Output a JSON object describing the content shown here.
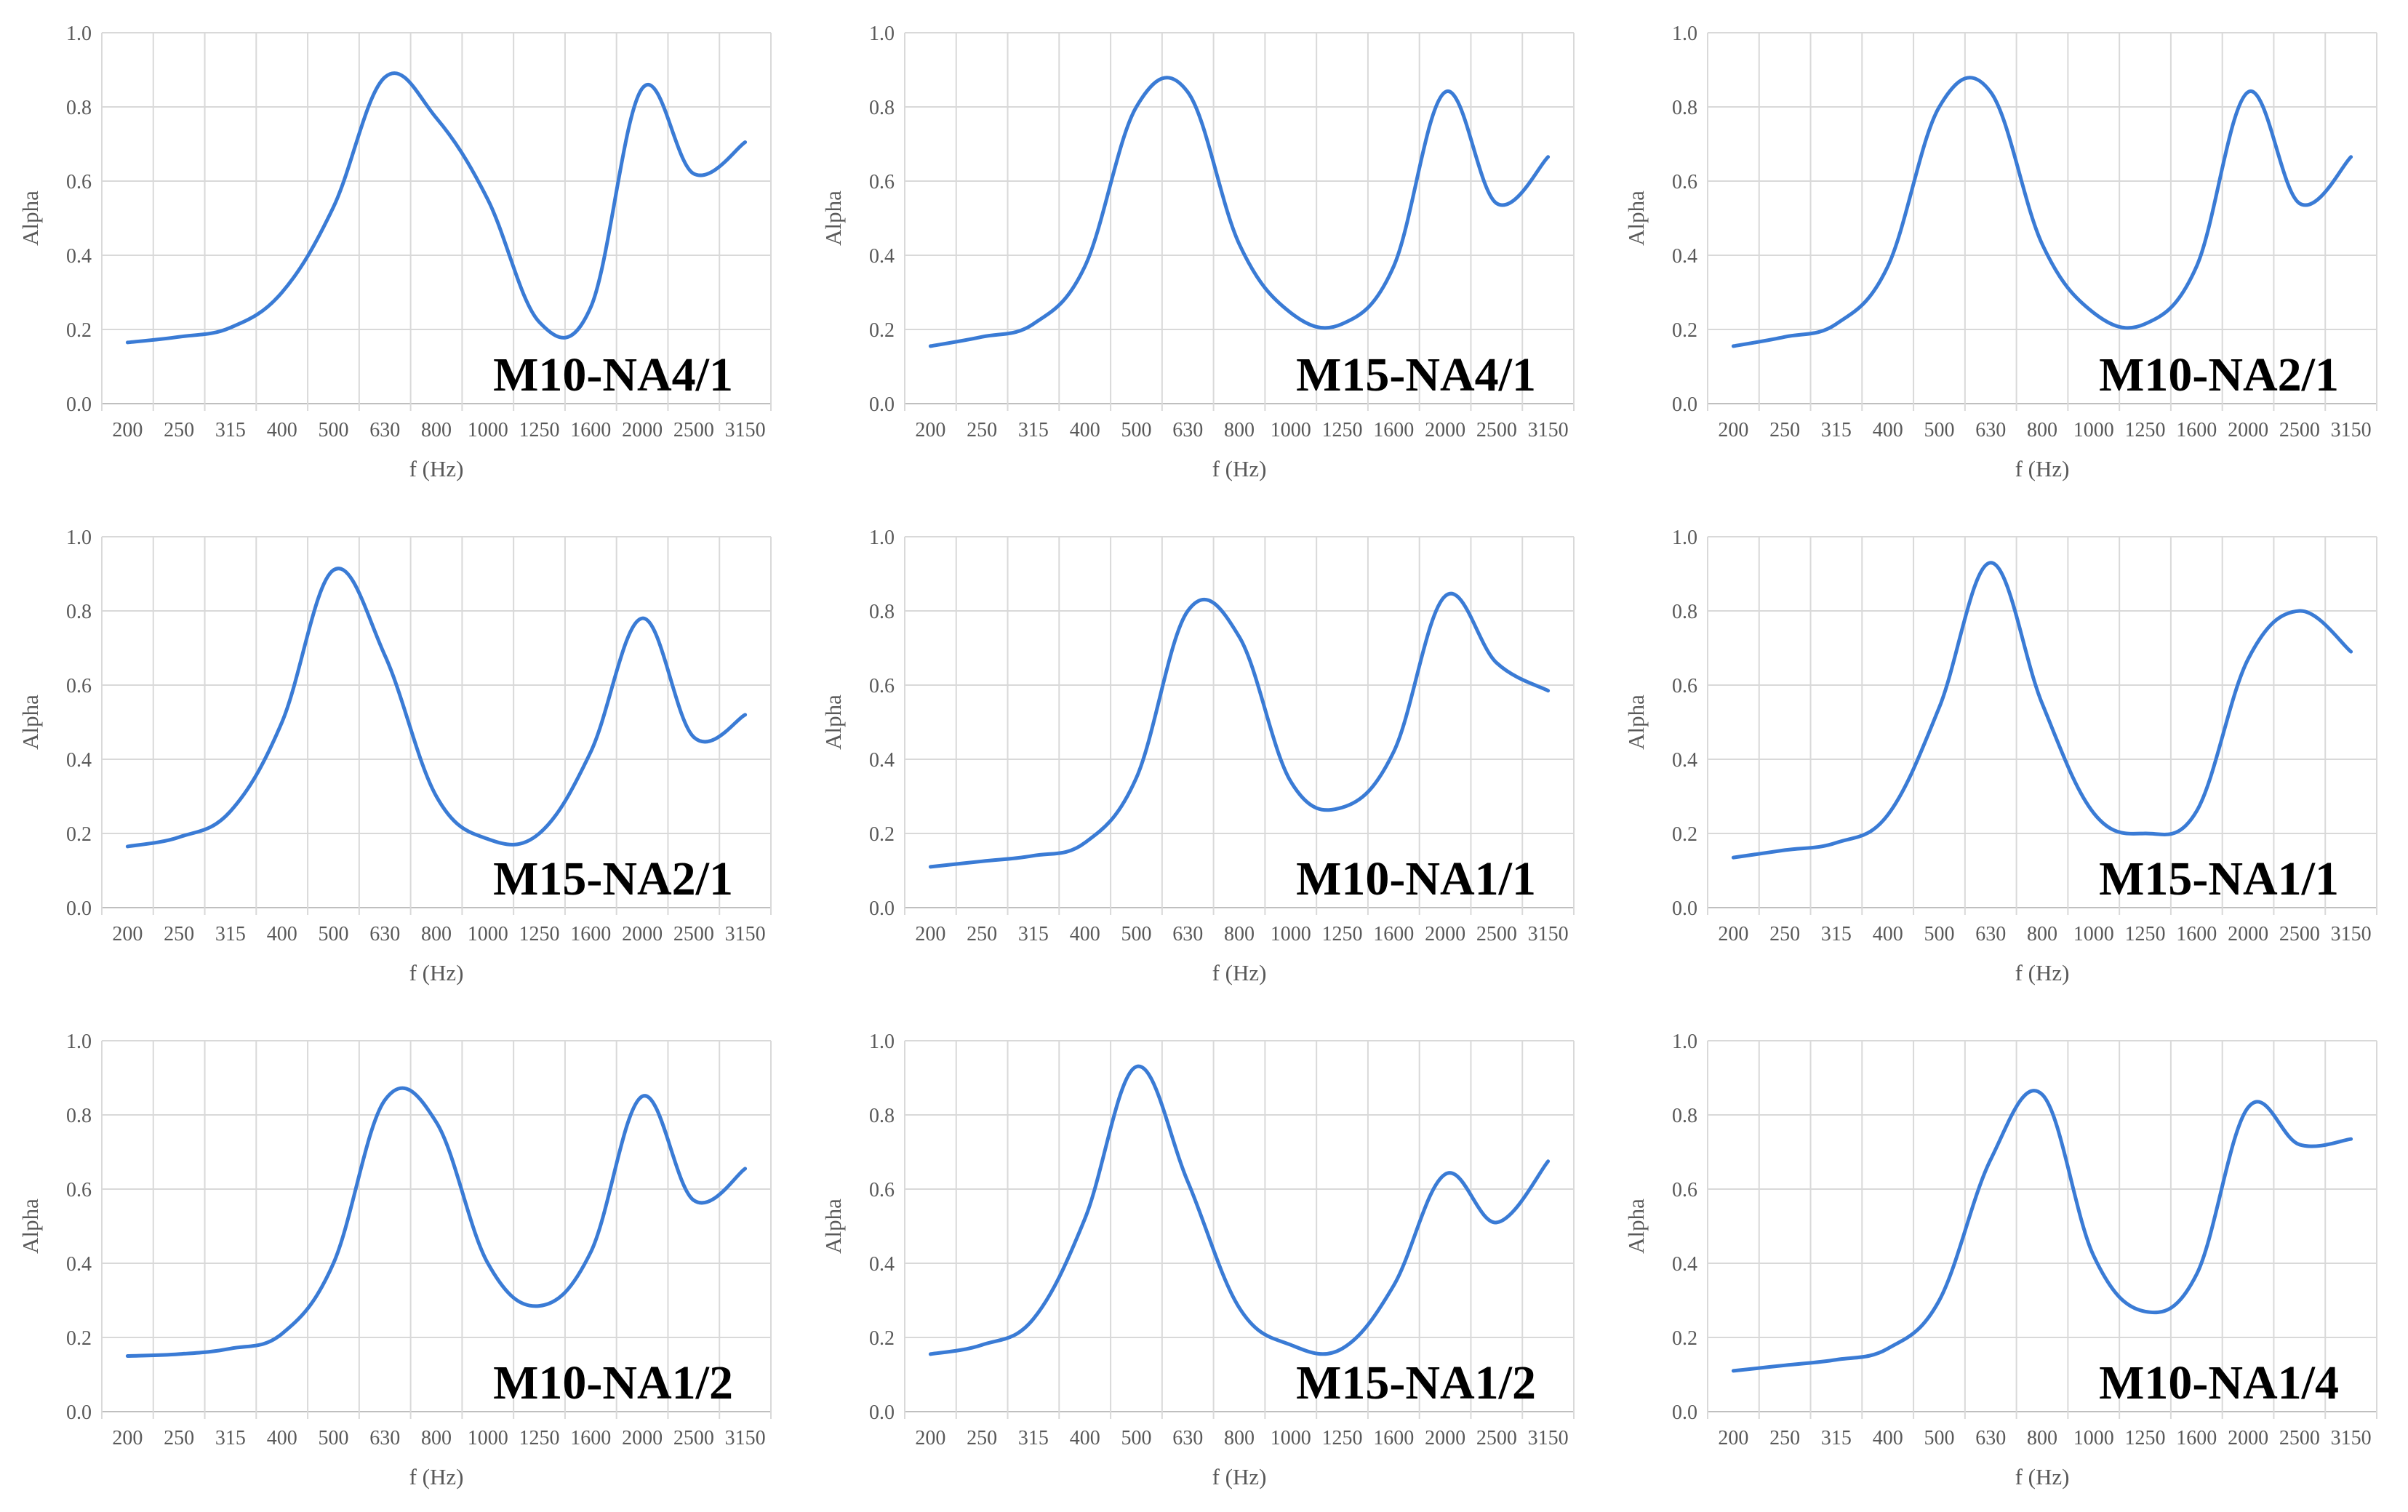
{
  "figure": {
    "style": {
      "line_color": "#3a7bd5",
      "grid_color": "#d9d9d9",
      "axis_color": "#bfbfbf",
      "text_color": "#595959"
    }
  },
  "chart_data": [
    {
      "type": "line",
      "title": "M10-NA4/1",
      "xlabel": "f (Hz)",
      "ylabel": "Alpha",
      "categories": [
        "200",
        "250",
        "315",
        "400",
        "500",
        "630",
        "800",
        "1000",
        "1250",
        "1600",
        "2000",
        "2500",
        "3150"
      ],
      "ylim": [
        0,
        1
      ],
      "yticks": [
        "0.0",
        "0.2",
        "0.4",
        "0.6",
        "0.8",
        "1.0"
      ],
      "grid": true,
      "legend": "none",
      "series": [
        {
          "values": [
            0.165,
            0.18,
            0.205,
            0.3,
            0.53,
            0.88,
            0.77,
            0.55,
            0.22,
            0.26,
            0.85,
            0.62,
            0.705
          ]
        }
      ]
    },
    {
      "type": "line",
      "title": "M15-NA4/1",
      "xlabel": "f (Hz)",
      "ylabel": "Alpha",
      "categories": [
        "200",
        "250",
        "315",
        "400",
        "500",
        "630",
        "800",
        "1000",
        "1250",
        "1600",
        "2000",
        "2500",
        "3150"
      ],
      "ylim": [
        0,
        1
      ],
      "yticks": [
        "0.0",
        "0.2",
        "0.4",
        "0.6",
        "0.8",
        "1.0"
      ],
      "grid": true,
      "legend": "none",
      "series": [
        {
          "values": [
            0.155,
            0.18,
            0.215,
            0.37,
            0.8,
            0.84,
            0.43,
            0.245,
            0.215,
            0.37,
            0.84,
            0.54,
            0.665
          ]
        }
      ]
    },
    {
      "type": "line",
      "title": "M10-NA2/1",
      "xlabel": "f (Hz)",
      "ylabel": "Alpha",
      "categories": [
        "200",
        "250",
        "315",
        "400",
        "500",
        "630",
        "800",
        "1000",
        "1250",
        "1600",
        "2000",
        "2500",
        "3150"
      ],
      "ylim": [
        0,
        1
      ],
      "yticks": [
        "0.0",
        "0.2",
        "0.4",
        "0.6",
        "0.8",
        "1.0"
      ],
      "grid": true,
      "legend": "none",
      "series": [
        {
          "values": [
            0.155,
            0.18,
            0.215,
            0.37,
            0.8,
            0.84,
            0.43,
            0.245,
            0.215,
            0.37,
            0.84,
            0.54,
            0.665
          ]
        }
      ]
    },
    {
      "type": "line",
      "title": "M15-NA2/1",
      "xlabel": "f (Hz)",
      "ylabel": "Alpha",
      "categories": [
        "200",
        "250",
        "315",
        "400",
        "500",
        "630",
        "800",
        "1000",
        "1250",
        "1600",
        "2000",
        "2500",
        "3150"
      ],
      "ylim": [
        0,
        1
      ],
      "yticks": [
        "0.0",
        "0.2",
        "0.4",
        "0.6",
        "0.8",
        "1.0"
      ],
      "grid": true,
      "legend": "none",
      "series": [
        {
          "values": [
            0.165,
            0.19,
            0.26,
            0.5,
            0.91,
            0.68,
            0.3,
            0.185,
            0.2,
            0.42,
            0.78,
            0.46,
            0.52
          ]
        }
      ]
    },
    {
      "type": "line",
      "title": "M10-NA1/1",
      "xlabel": "f (Hz)",
      "ylabel": "Alpha",
      "categories": [
        "200",
        "250",
        "315",
        "400",
        "500",
        "630",
        "800",
        "1000",
        "1250",
        "1600",
        "2000",
        "2500",
        "3150"
      ],
      "ylim": [
        0,
        1
      ],
      "yticks": [
        "0.0",
        "0.2",
        "0.4",
        "0.6",
        "0.8",
        "1.0"
      ],
      "grid": true,
      "legend": "none",
      "series": [
        {
          "values": [
            0.11,
            0.125,
            0.14,
            0.175,
            0.35,
            0.8,
            0.73,
            0.34,
            0.27,
            0.42,
            0.84,
            0.66,
            0.585
          ]
        }
      ]
    },
    {
      "type": "line",
      "title": "M15-NA1/1",
      "xlabel": "f (Hz)",
      "ylabel": "Alpha",
      "categories": [
        "200",
        "250",
        "315",
        "400",
        "500",
        "630",
        "800",
        "1000",
        "1250",
        "1600",
        "2000",
        "2500",
        "3150"
      ],
      "ylim": [
        0,
        1
      ],
      "yticks": [
        "0.0",
        "0.2",
        "0.4",
        "0.6",
        "0.8",
        "1.0"
      ],
      "grid": true,
      "legend": "none",
      "series": [
        {
          "values": [
            0.135,
            0.155,
            0.175,
            0.25,
            0.54,
            0.93,
            0.55,
            0.255,
            0.2,
            0.26,
            0.67,
            0.8,
            0.69
          ]
        }
      ]
    },
    {
      "type": "line",
      "title": "M10-NA1/2",
      "xlabel": "f (Hz)",
      "ylabel": "Alpha",
      "categories": [
        "200",
        "250",
        "315",
        "400",
        "500",
        "630",
        "800",
        "1000",
        "1250",
        "1600",
        "2000",
        "2500",
        "3150"
      ],
      "ylim": [
        0,
        1
      ],
      "yticks": [
        "0.0",
        "0.2",
        "0.4",
        "0.6",
        "0.8",
        "1.0"
      ],
      "grid": true,
      "legend": "none",
      "series": [
        {
          "values": [
            0.15,
            0.155,
            0.17,
            0.21,
            0.4,
            0.84,
            0.78,
            0.4,
            0.285,
            0.43,
            0.85,
            0.57,
            0.655
          ]
        }
      ]
    },
    {
      "type": "line",
      "title": "M15-NA1/2",
      "xlabel": "f (Hz)",
      "ylabel": "Alpha",
      "categories": [
        "200",
        "250",
        "315",
        "400",
        "500",
        "630",
        "800",
        "1000",
        "1250",
        "1600",
        "2000",
        "2500",
        "3150"
      ],
      "ylim": [
        0,
        1
      ],
      "yticks": [
        "0.0",
        "0.2",
        "0.4",
        "0.6",
        "0.8",
        "1.0"
      ],
      "grid": true,
      "legend": "none",
      "series": [
        {
          "values": [
            0.155,
            0.18,
            0.25,
            0.52,
            0.93,
            0.62,
            0.28,
            0.18,
            0.17,
            0.34,
            0.64,
            0.51,
            0.675
          ]
        }
      ]
    },
    {
      "type": "line",
      "title": "M10-NA1/4",
      "xlabel": "f (Hz)",
      "ylabel": "Alpha",
      "categories": [
        "200",
        "250",
        "315",
        "400",
        "500",
        "630",
        "800",
        "1000",
        "1250",
        "1600",
        "2000",
        "2500",
        "3150"
      ],
      "ylim": [
        0,
        1
      ],
      "yticks": [
        "0.0",
        "0.2",
        "0.4",
        "0.6",
        "0.8",
        "1.0"
      ],
      "grid": true,
      "legend": "none",
      "series": [
        {
          "values": [
            0.11,
            0.125,
            0.14,
            0.17,
            0.3,
            0.68,
            0.855,
            0.42,
            0.27,
            0.37,
            0.82,
            0.72,
            0.735
          ]
        }
      ]
    }
  ]
}
